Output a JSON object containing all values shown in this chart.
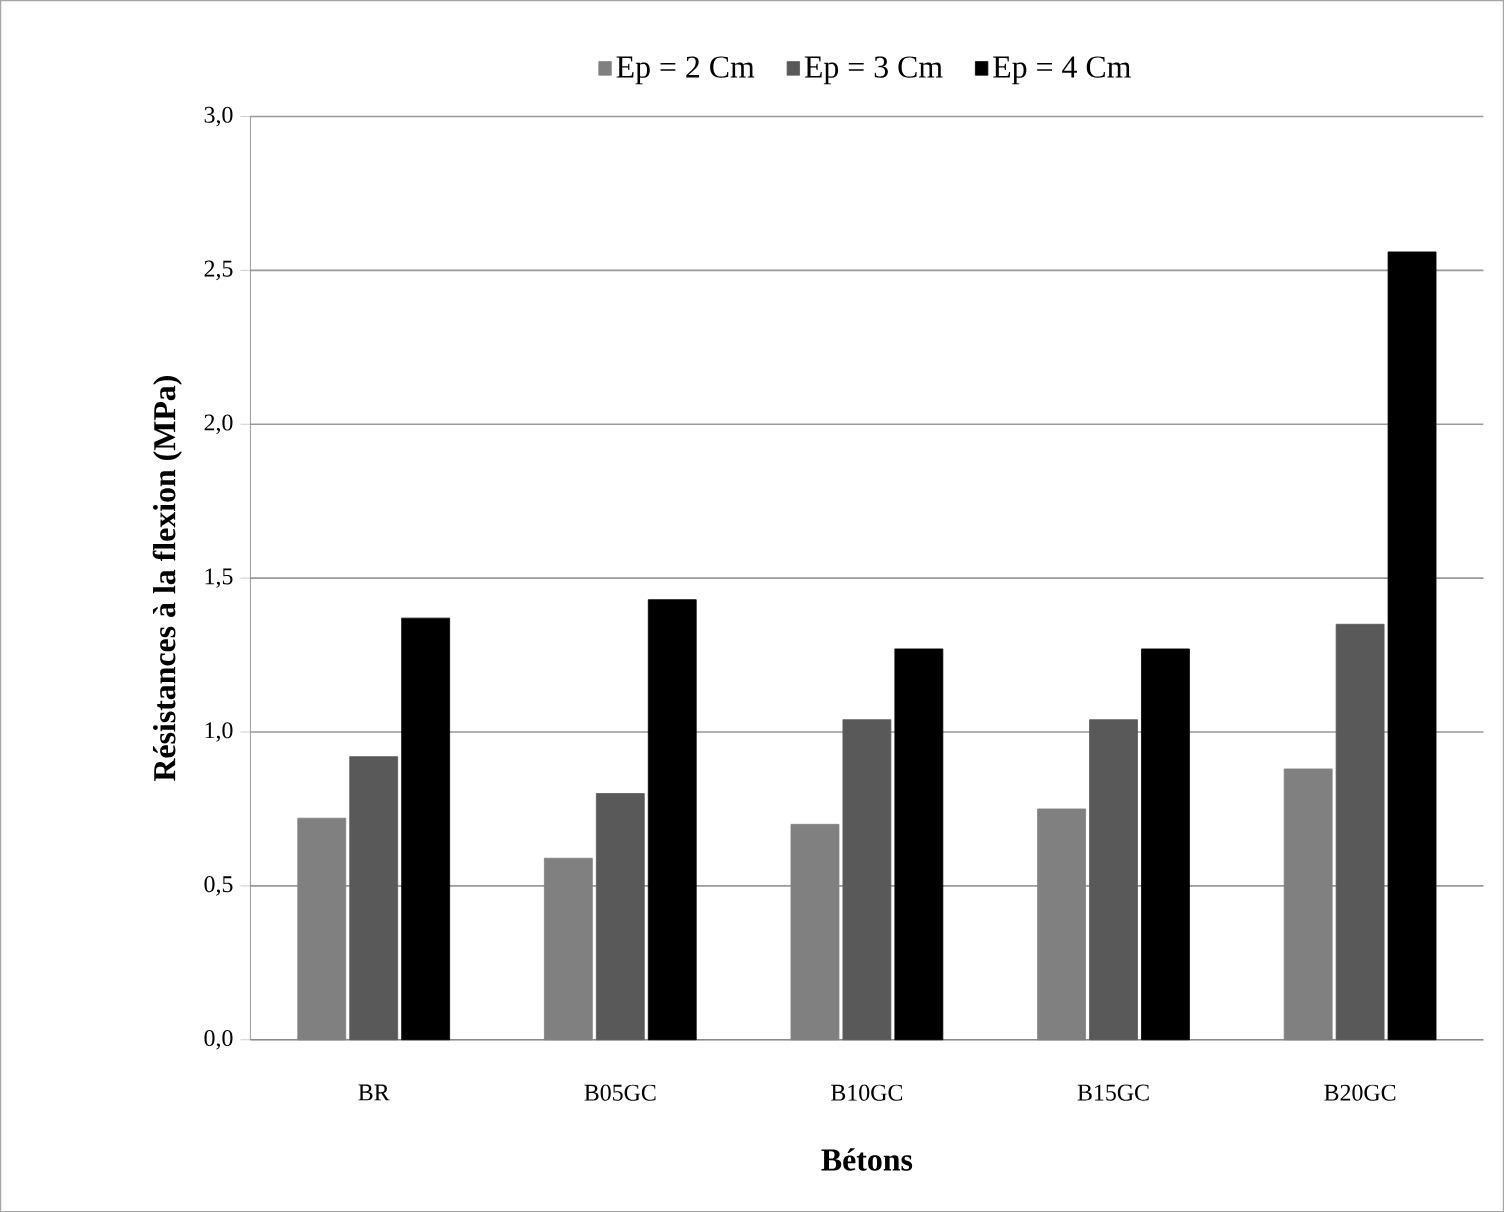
{
  "chart_data": {
    "type": "bar",
    "xlabel": "Bétons",
    "ylabel": "Résistances à la flexion (MPa)",
    "categories": [
      "BR",
      "B05GC",
      "B10GC",
      "B15GC",
      "B20GC"
    ],
    "series": [
      {
        "name": "Ep = 2 Cm",
        "color": "#808080",
        "values": [
          0.72,
          0.59,
          0.7,
          0.75,
          0.88
        ]
      },
      {
        "name": "Ep = 3 Cm",
        "color": "#595959",
        "values": [
          0.92,
          0.8,
          1.04,
          1.04,
          1.35
        ]
      },
      {
        "name": "Ep = 4 Cm",
        "color": "#000000",
        "values": [
          1.37,
          1.43,
          1.27,
          1.27,
          2.56
        ]
      }
    ],
    "ylim": [
      0,
      3
    ],
    "yticks": [
      {
        "value": 0,
        "label": "0,0"
      },
      {
        "value": 0.5,
        "label": "0,5"
      },
      {
        "value": 1,
        "label": "1,0"
      },
      {
        "value": 1.5,
        "label": "1,5"
      },
      {
        "value": 2,
        "label": "2,0"
      },
      {
        "value": 2.5,
        "label": "2,5"
      },
      {
        "value": 3,
        "label": "3,0"
      }
    ],
    "grid": "y",
    "legend": "top"
  }
}
